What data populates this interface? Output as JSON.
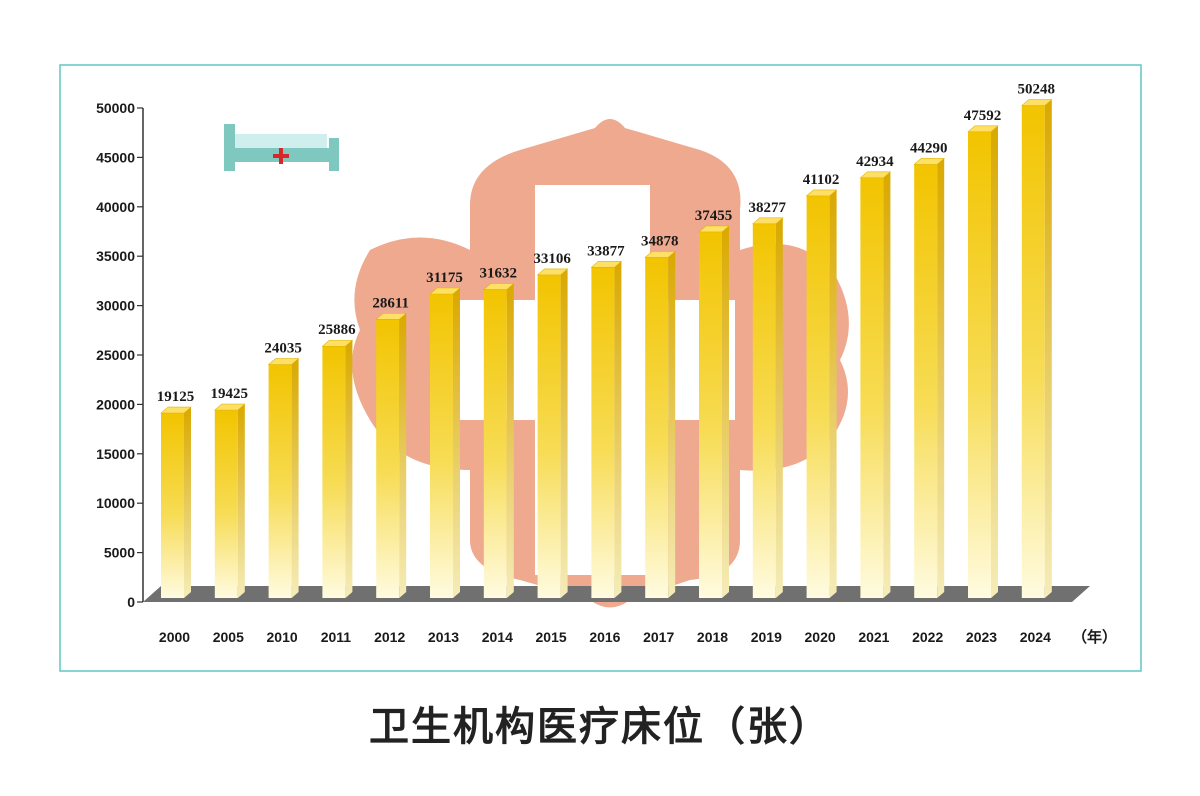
{
  "chart_data": {
    "type": "bar",
    "title": "卫生机构医疗床位（张）",
    "categories": [
      "2000",
      "2005",
      "2010",
      "2011",
      "2012",
      "2013",
      "2014",
      "2015",
      "2016",
      "2017",
      "2018",
      "2019",
      "2020",
      "2021",
      "2022",
      "2023",
      "2024"
    ],
    "values": [
      19125,
      19425,
      24035,
      25886,
      28611,
      31175,
      31632,
      33106,
      33877,
      34878,
      37455,
      38277,
      41102,
      42934,
      44290,
      47592,
      50248
    ],
    "x_unit": "（年）",
    "y_ticks": [
      0,
      5000,
      10000,
      15000,
      20000,
      25000,
      30000,
      35000,
      40000,
      45000,
      50000
    ],
    "ylim": [
      0,
      50000
    ],
    "grid": false,
    "legend": "none"
  },
  "colors": {
    "bar_top": "#f2c400",
    "bar_bottom": "#fffbe0",
    "bar_side": "#d9a800",
    "bar_cap": "#ffe066",
    "floor": "#707070",
    "frame": "#5ec7c4",
    "emblem": "#eea98f",
    "bed": "#7ec8c0",
    "cross": "#d62828"
  },
  "icons": {
    "decor_bed": "hospital-bed-icon",
    "decor_emblem": "health-cross-emblem"
  }
}
